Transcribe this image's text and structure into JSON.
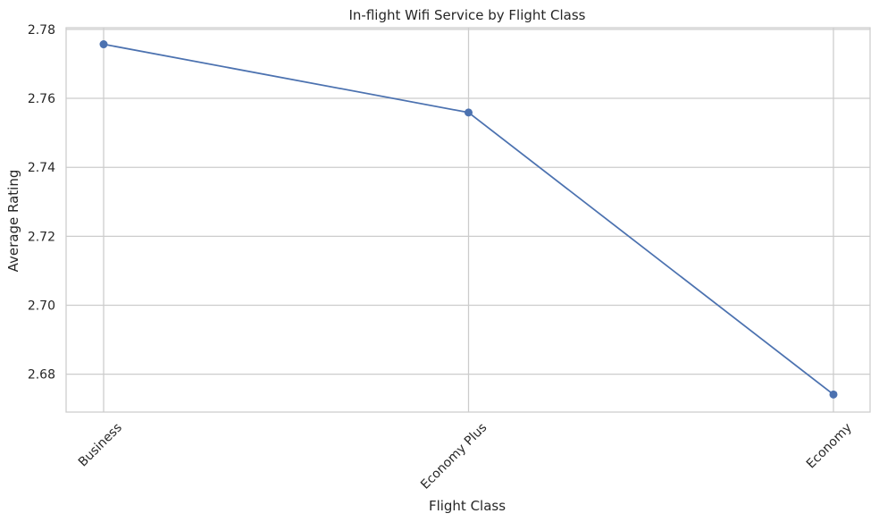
{
  "chart_data": {
    "type": "line",
    "title": "In-flight Wifi Service by Flight Class",
    "xlabel": "Flight Class",
    "ylabel": "Average Rating",
    "categories": [
      "Business",
      "Economy Plus",
      "Economy"
    ],
    "series": [
      {
        "values": [
          2.7757,
          2.7559,
          2.6741
        ],
        "color": "#4c72b0",
        "marker": "circle"
      }
    ],
    "ylim": [
      2.669,
      2.7805
    ],
    "yticks": [
      "2.68",
      "2.70",
      "2.72",
      "2.74",
      "2.76",
      "2.78"
    ],
    "ytick_values": [
      2.68,
      2.7,
      2.72,
      2.74,
      2.76,
      2.78
    ],
    "grid": true,
    "x_tick_rotation_deg": 45,
    "colors": {
      "grid": "#cccccc",
      "axes": "#cccccc",
      "text": "#262626"
    }
  }
}
